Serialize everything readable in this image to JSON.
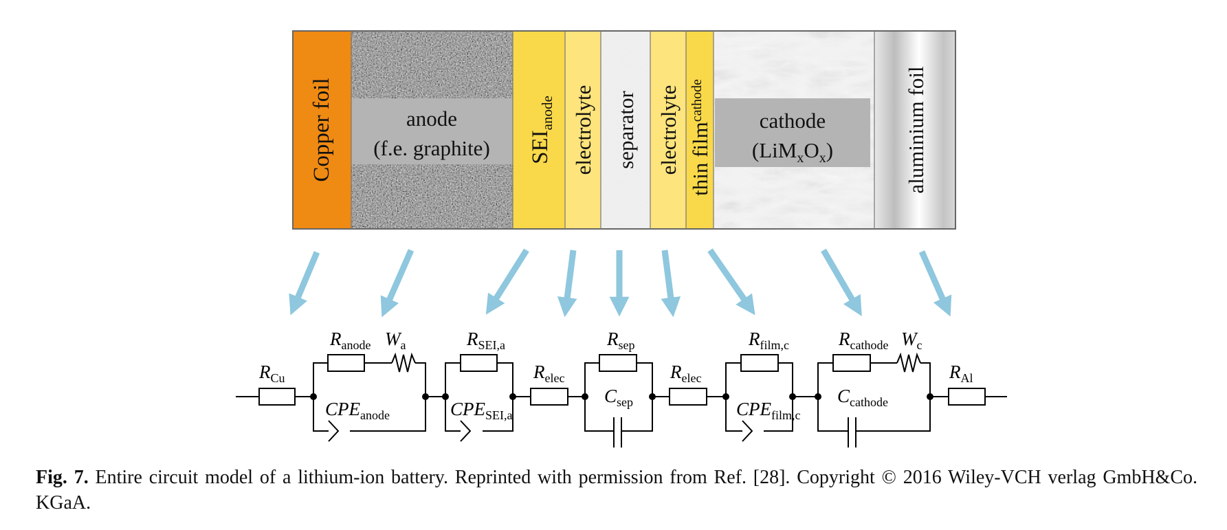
{
  "layers": {
    "copper": "Copper foil",
    "anode_line1": "anode",
    "anode_line2": "(f.e. graphite)",
    "sei_main": "SEI",
    "sei_sub": "anode",
    "electrolyte_left": "electrolyte",
    "separator": "separator",
    "electrolyte_right": "electrolyte",
    "thinfilm_main": "thin film",
    "thinfilm_sub": "cathode",
    "cathode_line1": "cathode",
    "cathode_formula": {
      "p1": "(LiM",
      "s1": "x",
      "p2": "O",
      "s2": "x",
      "p3": ")"
    },
    "aluminium": "aluminium foil"
  },
  "circuit": {
    "R_cu": {
      "main": "R",
      "sub": "Cu"
    },
    "R_anode": {
      "main": "R",
      "sub": "anode"
    },
    "W_a": {
      "main": "W",
      "sub": "a"
    },
    "CPE_anode": {
      "main": "CPE",
      "sub": "anode"
    },
    "R_sei": {
      "main": "R",
      "sub": "SEI,a"
    },
    "CPE_sei": {
      "main": "CPE",
      "sub": "SEI,a"
    },
    "R_elec1": {
      "main": "R",
      "sub": "elec"
    },
    "R_sep": {
      "main": "R",
      "sub": "sep"
    },
    "C_sep": {
      "main": "C",
      "sub": "sep"
    },
    "R_elec2": {
      "main": "R",
      "sub": "elec"
    },
    "R_film": {
      "main": "R",
      "sub": "film,c"
    },
    "CPE_film": {
      "main": "CPE",
      "sub": "film,c"
    },
    "R_cathode": {
      "main": "R",
      "sub": "cathode"
    },
    "W_c": {
      "main": "W",
      "sub": "c"
    },
    "C_cathode": {
      "main": "C",
      "sub": "cathode"
    },
    "R_al": {
      "main": "R",
      "sub": "Al"
    }
  },
  "caption": {
    "label": "Fig. 7.",
    "text": " Entire circuit model of a lithium-ion battery. Reprinted with permission from Ref. [28]. Copyright © 2016 Wiley-VCH verlag GmbH&Co. KGaA."
  },
  "colors": {
    "copper": "#ef8a13",
    "sei": "#f9d94a",
    "electrolyte": "#fde47c",
    "arrow": "#8ec7de",
    "label_box": "#b4b4b4"
  }
}
